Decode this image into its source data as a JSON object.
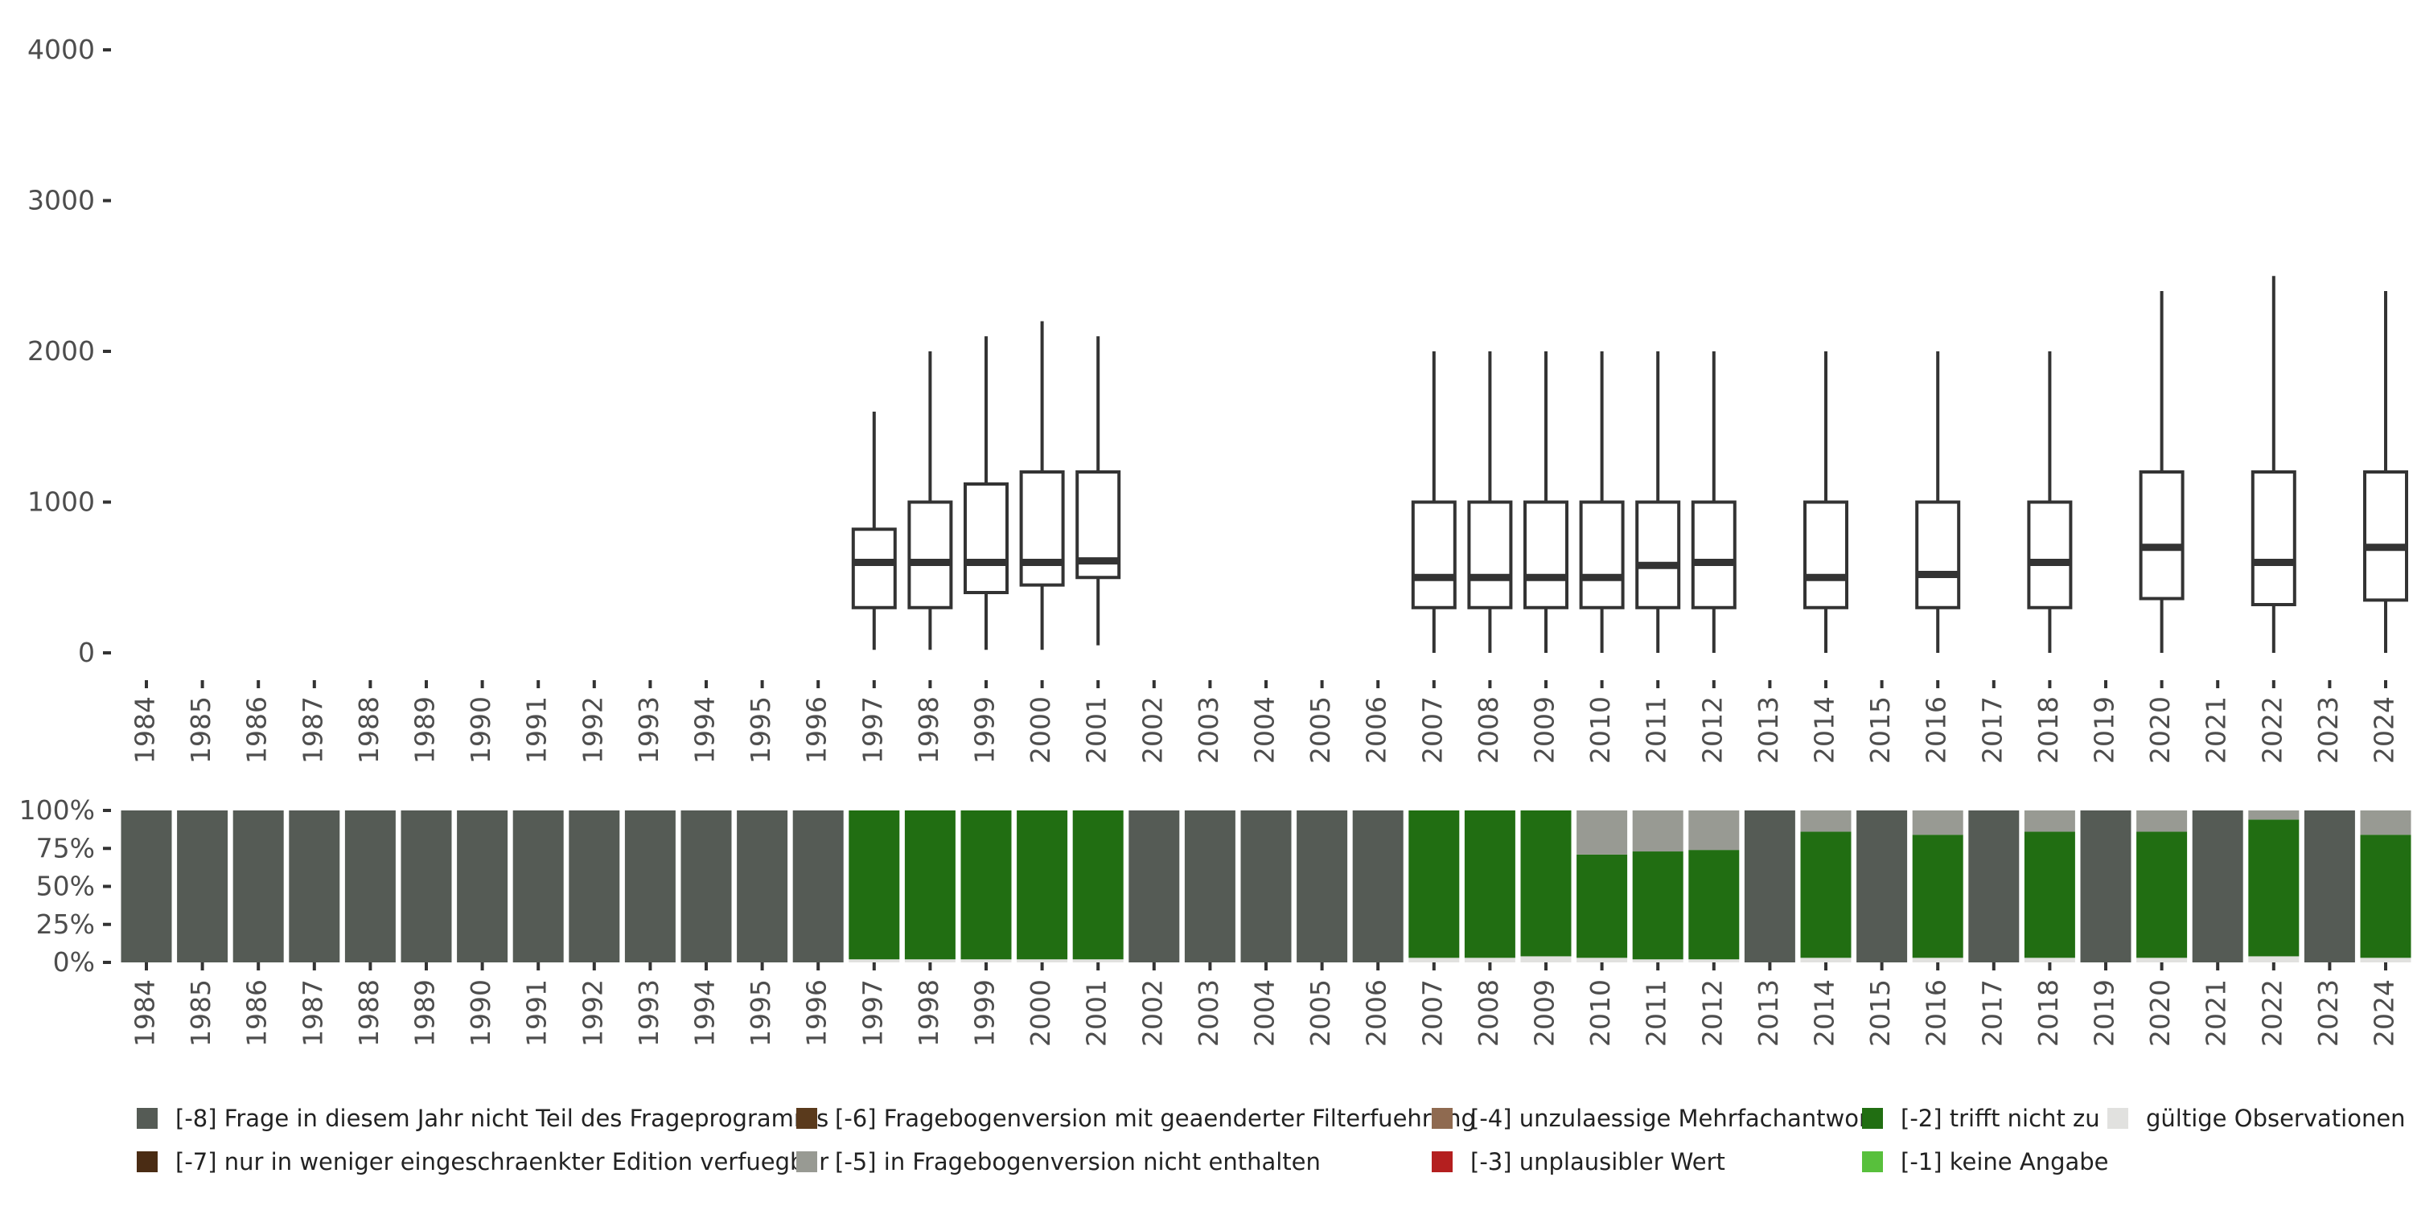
{
  "chart_data": [
    {
      "type": "boxplot",
      "title": "",
      "xlabel": "",
      "ylabel": "",
      "ylim": [
        0,
        4000
      ],
      "yticks": [
        0,
        1000,
        2000,
        3000,
        4000
      ],
      "ytick_labels": [
        "0",
        "1000",
        "2000",
        "3000",
        "4000"
      ],
      "categories": [
        "1984",
        "1985",
        "1986",
        "1987",
        "1988",
        "1989",
        "1990",
        "1991",
        "1992",
        "1993",
        "1994",
        "1995",
        "1996",
        "1997",
        "1998",
        "1999",
        "2000",
        "2001",
        "2002",
        "2003",
        "2004",
        "2005",
        "2006",
        "2007",
        "2008",
        "2009",
        "2010",
        "2011",
        "2012",
        "2013",
        "2014",
        "2015",
        "2016",
        "2017",
        "2018",
        "2019",
        "2020",
        "2021",
        "2022",
        "2023",
        "2024"
      ],
      "boxes": [
        {
          "year": "1997",
          "min": 20,
          "q1": 300,
          "median": 600,
          "q3": 820,
          "max": 1600
        },
        {
          "year": "1998",
          "min": 20,
          "q1": 300,
          "median": 600,
          "q3": 1000,
          "max": 2000
        },
        {
          "year": "1999",
          "min": 20,
          "q1": 400,
          "median": 600,
          "q3": 1120,
          "max": 2100
        },
        {
          "year": "2000",
          "min": 20,
          "q1": 450,
          "median": 600,
          "q3": 1200,
          "max": 2200
        },
        {
          "year": "2001",
          "min": 50,
          "q1": 500,
          "median": 610,
          "q3": 1200,
          "max": 2100
        },
        {
          "year": "2007",
          "min": 0,
          "q1": 300,
          "median": 500,
          "q3": 1000,
          "max": 2000
        },
        {
          "year": "2008",
          "min": 0,
          "q1": 300,
          "median": 500,
          "q3": 1000,
          "max": 2000
        },
        {
          "year": "2009",
          "min": 0,
          "q1": 300,
          "median": 500,
          "q3": 1000,
          "max": 2000
        },
        {
          "year": "2010",
          "min": 0,
          "q1": 300,
          "median": 500,
          "q3": 1000,
          "max": 2000
        },
        {
          "year": "2011",
          "min": 0,
          "q1": 300,
          "median": 580,
          "q3": 1000,
          "max": 2000
        },
        {
          "year": "2012",
          "min": 0,
          "q1": 300,
          "median": 600,
          "q3": 1000,
          "max": 2000
        },
        {
          "year": "2014",
          "min": 0,
          "q1": 300,
          "median": 500,
          "q3": 1000,
          "max": 2000
        },
        {
          "year": "2016",
          "min": 0,
          "q1": 300,
          "median": 520,
          "q3": 1000,
          "max": 2000
        },
        {
          "year": "2018",
          "min": 0,
          "q1": 300,
          "median": 600,
          "q3": 1000,
          "max": 2000
        },
        {
          "year": "2020",
          "min": 0,
          "q1": 360,
          "median": 700,
          "q3": 1200,
          "max": 2400
        },
        {
          "year": "2022",
          "min": 0,
          "q1": 320,
          "median": 600,
          "q3": 1200,
          "max": 2500
        },
        {
          "year": "2024",
          "min": 0,
          "q1": 350,
          "median": 700,
          "q3": 1200,
          "max": 2400
        }
      ]
    },
    {
      "type": "stacked_bar",
      "ylim": [
        0,
        100
      ],
      "yticks": [
        0,
        25,
        50,
        75,
        100
      ],
      "ytick_labels": [
        "0%",
        "25%",
        "50%",
        "75%",
        "100%"
      ],
      "categories": [
        "1984",
        "1985",
        "1986",
        "1987",
        "1988",
        "1989",
        "1990",
        "1991",
        "1992",
        "1993",
        "1994",
        "1995",
        "1996",
        "1997",
        "1998",
        "1999",
        "2000",
        "2001",
        "2002",
        "2003",
        "2004",
        "2005",
        "2006",
        "2007",
        "2008",
        "2009",
        "2010",
        "2011",
        "2012",
        "2013",
        "2014",
        "2015",
        "2016",
        "2017",
        "2018",
        "2019",
        "2020",
        "2021",
        "2022",
        "2023",
        "2024"
      ],
      "series": [
        {
          "name": "[-8] Frage in diesem Jahr nicht Teil des Frageprogramms",
          "color": "#555b55",
          "values": [
            100,
            100,
            100,
            100,
            100,
            100,
            100,
            100,
            100,
            100,
            100,
            100,
            100,
            0,
            0,
            0,
            0,
            0,
            100,
            100,
            100,
            100,
            100,
            0,
            0,
            0,
            0,
            0,
            0,
            100,
            0,
            100,
            0,
            100,
            0,
            100,
            0,
            100,
            0,
            100,
            0
          ]
        },
        {
          "name": "[-2] trifft nicht zu",
          "color": "#216e12",
          "values": [
            0,
            0,
            0,
            0,
            0,
            0,
            0,
            0,
            0,
            0,
            0,
            0,
            0,
            98,
            98,
            98,
            98,
            98,
            0,
            0,
            0,
            0,
            0,
            97,
            97,
            96,
            68,
            71,
            72,
            0,
            83,
            0,
            81,
            0,
            83,
            0,
            83,
            0,
            90,
            0,
            81
          ]
        },
        {
          "name": "[-5] in Fragebogenversion nicht enthalten",
          "color": "#989a93",
          "values": [
            0,
            0,
            0,
            0,
            0,
            0,
            0,
            0,
            0,
            0,
            0,
            0,
            0,
            0,
            0,
            0,
            0,
            0,
            0,
            0,
            0,
            0,
            0,
            0,
            0,
            0,
            29,
            27,
            26,
            0,
            14,
            0,
            16,
            0,
            14,
            0,
            14,
            0,
            6,
            0,
            16
          ]
        },
        {
          "name": "gültige Observationen",
          "color": "#e1e1df",
          "values": [
            0,
            0,
            0,
            0,
            0,
            0,
            0,
            0,
            0,
            0,
            0,
            0,
            0,
            2,
            2,
            2,
            2,
            2,
            0,
            0,
            0,
            0,
            0,
            3,
            3,
            4,
            3,
            2,
            2,
            0,
            3,
            0,
            3,
            0,
            3,
            0,
            3,
            0,
            4,
            0,
            3
          ]
        }
      ]
    }
  ],
  "legend": {
    "items": [
      {
        "label": "[-8] Frage in diesem Jahr nicht Teil des Frageprogramms",
        "color": "#555b55"
      },
      {
        "label": "[-6] Fragebogenversion mit geaenderter Filterfuehrung",
        "color": "#5a3a1c"
      },
      {
        "label": "[-4] unzulaessige Mehrfachantwort",
        "color": "#8f6a50"
      },
      {
        "label": "[-2] trifft nicht zu",
        "color": "#216e12"
      },
      {
        "label": "gültige Observationen",
        "color": "#e1e1df"
      },
      {
        "label": "[-7] nur in weniger eingeschraenkter Edition verfuegbar",
        "color": "#4a2c14"
      },
      {
        "label": "[-5] in Fragebogenversion nicht enthalten",
        "color": "#989a93"
      },
      {
        "label": "[-3] unplausibler Wert",
        "color": "#b41f1f"
      },
      {
        "label": "[-1] keine Angabe",
        "color": "#58c03c"
      }
    ]
  }
}
